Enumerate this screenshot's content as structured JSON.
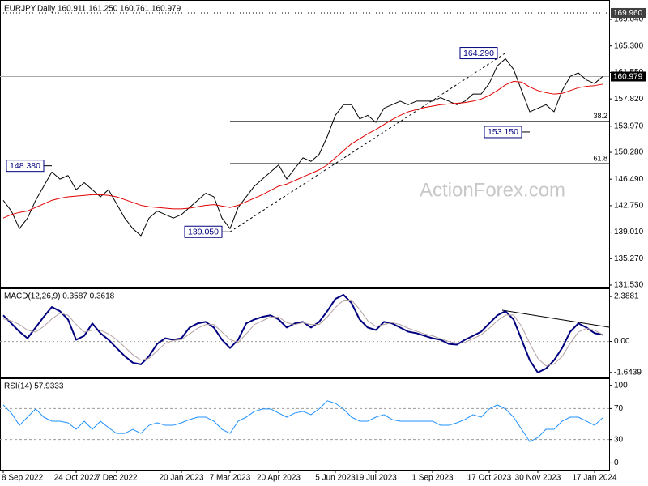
{
  "chart_data": [
    {
      "type": "line",
      "title": "EURJPY,Daily  160.911 161.250 160.761 160.979",
      "watermark": "ActionForex.com",
      "categories": [
        "8 Sep 2022",
        null,
        null,
        null,
        null,
        null,
        null,
        null,
        null,
        "24 Oct 2022",
        null,
        null,
        null,
        null,
        "7 Dec 2022",
        null,
        null,
        null,
        null,
        null,
        null,
        null,
        "20 Jan 2023",
        null,
        null,
        null,
        null,
        null,
        "7 Mar 2023",
        null,
        null,
        null,
        null,
        null,
        "20 Apr 2023",
        null,
        null,
        null,
        null,
        null,
        null,
        "5 Jun 2023",
        null,
        null,
        null,
        null,
        "19 Jul 2023",
        null,
        null,
        null,
        null,
        null,
        null,
        "1 Sep 2023",
        null,
        null,
        null,
        null,
        null,
        null,
        "17 Oct 2023",
        null,
        null,
        null,
        null,
        null,
        "30 Nov 2023",
        null,
        null,
        null,
        null,
        null,
        null,
        "17 Jan 2024",
        null
      ],
      "series": [
        {
          "name": "EURJPY",
          "color": "#000000",
          "values": [
            143.5,
            142.0,
            139.5,
            141.0,
            143.5,
            145.5,
            147.5,
            146.5,
            147.0,
            145.0,
            146.0,
            145.0,
            144.0,
            145.0,
            143.0,
            141.0,
            139.5,
            138.5,
            141.0,
            142.0,
            141.5,
            141.0,
            141.5,
            142.5,
            143.5,
            144.5,
            144.0,
            141.0,
            139.5,
            142.5,
            144.0,
            145.5,
            146.5,
            147.5,
            148.5,
            146.5,
            148.0,
            149.5,
            149.0,
            150.0,
            152.5,
            155.5,
            157.0,
            157.0,
            155.0,
            155.5,
            154.5,
            156.5,
            157.0,
            157.5,
            157.0,
            157.5,
            157.5,
            157.5,
            158.0,
            157.5,
            157.0,
            157.5,
            158.5,
            158.5,
            160.0,
            162.5,
            163.5,
            162.0,
            159.0,
            156.0,
            156.5,
            157.0,
            156.0,
            159.0,
            161.0,
            161.5,
            160.5,
            160.0,
            160.979
          ]
        },
        {
          "name": "EMA",
          "color": "#e00000",
          "values": [
            141.0,
            141.5,
            141.8,
            142.0,
            142.5,
            143.0,
            143.5,
            143.8,
            144.0,
            144.1,
            144.2,
            144.3,
            144.3,
            144.2,
            144.0,
            143.6,
            143.2,
            142.8,
            142.6,
            142.5,
            142.4,
            142.3,
            142.3,
            142.4,
            142.6,
            142.8,
            142.9,
            142.7,
            142.5,
            142.8,
            143.3,
            143.8,
            144.3,
            144.9,
            145.5,
            145.8,
            146.3,
            146.8,
            147.3,
            147.8,
            148.5,
            149.5,
            150.5,
            151.5,
            152.2,
            152.9,
            153.5,
            154.2,
            154.9,
            155.5,
            156.0,
            156.3,
            156.6,
            156.8,
            157.0,
            157.1,
            157.2,
            157.3,
            157.5,
            157.8,
            158.3,
            159.0,
            159.8,
            160.3,
            160.2,
            159.5,
            159.0,
            158.7,
            158.5,
            158.6,
            159.0,
            159.4,
            159.6,
            159.7,
            159.9
          ]
        }
      ],
      "ylim": [
        131.53,
        171.33
      ],
      "yticks": [
        {
          "value": 169.04,
          "label": "169.040"
        },
        {
          "value": 165.3,
          "label": "165.300"
        },
        {
          "value": 161.55,
          "label": "161.550"
        },
        {
          "value": 157.82,
          "label": "157.820"
        },
        {
          "value": 153.97,
          "label": "153.970"
        },
        {
          "value": 150.28,
          "label": "150.280"
        },
        {
          "value": 146.49,
          "label": "146.490"
        },
        {
          "value": 142.75,
          "label": "142.750"
        },
        {
          "value": 139.01,
          "label": "139.010"
        },
        {
          "value": 135.27,
          "label": "135.270"
        },
        {
          "value": 131.53,
          "label": "131.530"
        }
      ],
      "levels": [
        {
          "value": 169.96,
          "label": "169.960",
          "color": "#404040"
        },
        {
          "value": 160.979,
          "label": "160.979",
          "color": "#000000"
        }
      ],
      "annotations": [
        {
          "value": 148.38,
          "label": "148.380",
          "x": 6
        },
        {
          "value": 139.05,
          "label": "139.050",
          "x": 28
        },
        {
          "value": 164.29,
          "label": "164.290",
          "x": 62
        },
        {
          "value": 153.15,
          "label": "153.150",
          "x": 65
        }
      ],
      "fibonacci": [
        {
          "ratio": 38.2,
          "value": 154.65
        },
        {
          "ratio": 61.8,
          "value": 148.69
        }
      ]
    },
    {
      "type": "line",
      "title": "MACD(12,26,9) 0.3587 0.3618",
      "series": [
        {
          "name": "MACD",
          "color": "#000080",
          "values": [
            1.39,
            0.96,
            0.52,
            0.17,
            0.74,
            1.31,
            1.83,
            1.61,
            1.17,
            0.09,
            0.3,
            0.96,
            0.44,
            0.09,
            -0.35,
            -0.78,
            -1.13,
            -1.22,
            -0.78,
            -0.13,
            0.17,
            0.09,
            0.17,
            0.74,
            0.96,
            1.04,
            0.74,
            0.09,
            -0.35,
            0.09,
            0.96,
            1.17,
            1.31,
            1.39,
            1.17,
            0.74,
            0.96,
            1.04,
            0.74,
            1.04,
            1.61,
            2.26,
            2.48,
            2.04,
            1.17,
            0.74,
            0.61,
            1.04,
            0.96,
            0.74,
            0.52,
            0.44,
            0.3,
            0.17,
            0.09,
            -0.13,
            -0.17,
            0.09,
            0.3,
            0.52,
            0.96,
            1.39,
            1.61,
            1.17,
            0.09,
            -1.0,
            -1.65,
            -1.44,
            -1.0,
            -0.35,
            0.52,
            0.96,
            0.74,
            0.44,
            0.3587
          ]
        },
        {
          "name": "Signal",
          "color": "#b4a0a0",
          "values": [
            1.2,
            1.1,
            0.9,
            0.6,
            0.5,
            0.8,
            1.2,
            1.5,
            1.4,
            0.9,
            0.5,
            0.6,
            0.6,
            0.4,
            0.1,
            -0.3,
            -0.7,
            -1.0,
            -0.9,
            -0.5,
            -0.1,
            0.05,
            0.1,
            0.4,
            0.7,
            0.9,
            0.9,
            0.5,
            0.1,
            -0.05,
            0.4,
            0.9,
            1.1,
            1.3,
            1.3,
            1.0,
            0.9,
            1.0,
            0.9,
            0.9,
            1.3,
            1.8,
            2.2,
            2.2,
            1.7,
            1.1,
            0.8,
            0.9,
            1.0,
            0.9,
            0.7,
            0.55,
            0.4,
            0.3,
            0.15,
            0.0,
            -0.1,
            -0.05,
            0.15,
            0.35,
            0.7,
            1.1,
            1.4,
            1.4,
            0.8,
            -0.1,
            -0.9,
            -1.3,
            -1.2,
            -0.8,
            -0.1,
            0.5,
            0.7,
            0.6,
            0.3618
          ]
        }
      ],
      "ylim": [
        -1.87,
        2.78
      ],
      "yticks": [
        2.3881,
        {
          "value": 0,
          "label": "0.00"
        },
        -1.6439
      ]
    },
    {
      "type": "line",
      "title": "RSI(14) 57.9333",
      "series": [
        {
          "name": "RSI",
          "color": "#1e90ff",
          "values": [
            74.7,
            64.2,
            48.4,
            58.9,
            69.5,
            58.9,
            53.7,
            53.7,
            51.6,
            43.2,
            53.7,
            43.2,
            53.7,
            45.3,
            37.9,
            37.9,
            43.2,
            37.9,
            48.4,
            51.6,
            48.4,
            48.4,
            51.6,
            55.8,
            58.9,
            58.9,
            53.7,
            43.2,
            37.9,
            53.7,
            58.9,
            66.3,
            69.5,
            69.5,
            64.2,
            58.9,
            64.2,
            66.3,
            62.1,
            69.5,
            80.0,
            76.8,
            69.5,
            58.9,
            53.7,
            53.7,
            58.9,
            62.1,
            55.8,
            53.7,
            53.7,
            53.7,
            53.7,
            53.7,
            48.4,
            48.4,
            51.6,
            55.8,
            62.1,
            58.9,
            69.5,
            74.7,
            69.5,
            58.9,
            43.2,
            27.4,
            32.6,
            43.2,
            43.2,
            53.7,
            58.9,
            58.9,
            53.7,
            48.4,
            57.9333
          ]
        }
      ],
      "ylim": [
        -9,
        108
      ],
      "yticks": [
        100,
        70,
        30,
        0
      ],
      "levels": [
        70,
        30
      ]
    }
  ]
}
